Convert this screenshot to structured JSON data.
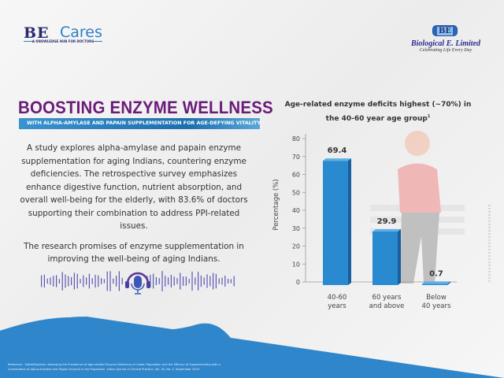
{
  "header": {
    "brand_be": "BE",
    "brand_cares": "Cares",
    "brand_tagline": "A KNOWLEDGE HUB FOR DOCTORS",
    "company_logo": "BE",
    "company_name": "Biological E. Limited",
    "company_tagline": "Celebrating Life Every Day"
  },
  "main": {
    "title": "BOOSTING ENZYME WELLNESS",
    "subtitle": "WITH ALPHA-AMYLASE AND PAPAIN SUPPLEMENTATION FOR AGE-DEFYING VITALITY.",
    "paragraphs": [
      "A study explores alpha-amylase and papain enzyme supplementation for aging Indians, countering enzyme deficiencies. The retrospective survey emphasizes enhance digestive function, nutrient absorption, and overall well-being for the elderly, with 83.6% of doctors supporting their combination to address PPI-related issues.",
      "The research promises of enzyme supplementation in improving the well-being of aging Indians."
    ],
    "audio_icon": "headphone-microphone-icon"
  },
  "footer": {
    "reference": "Reference : Sathe/Rajurkar. Assessing the Prevalence of Age-related Enzyme Deficiency in Indian Population and the Efficacy of Supplementing with a Combination of Alpha-Amylase and Papain Enzyme in the Population. Indian Journal of Clinical Practice, Vol. 34, No. 4, September 2023."
  },
  "colors": {
    "title": "#6a1b7a",
    "accent": "#2c7fc4",
    "bar": "#2a8ad0"
  },
  "chart_data": {
    "type": "bar",
    "title": "Age-related enzyme deficits highest (~70%) in the 40-60 year age group",
    "title_superscript": "1",
    "categories": [
      [
        "40-60",
        "years"
      ],
      [
        "60 years",
        "and above"
      ],
      [
        "Below",
        "40 years"
      ]
    ],
    "values": [
      69.4,
      29.9,
      0.7
    ],
    "value_labels": [
      "69.4",
      "29.9",
      "0.7"
    ],
    "ylabel": "Percentage (%)",
    "xlabel": "",
    "ylim": [
      0,
      80
    ],
    "yticks": [
      "0",
      "10",
      "20",
      "30",
      "40",
      "50",
      "60",
      "70",
      "80"
    ]
  }
}
